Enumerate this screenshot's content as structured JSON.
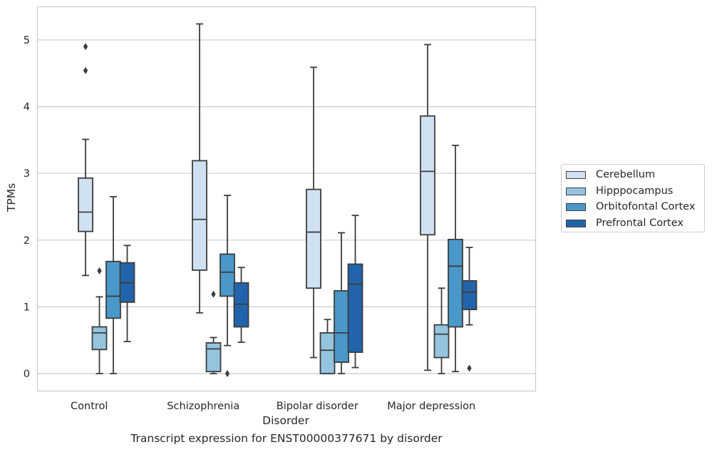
{
  "chart_data": {
    "type": "box",
    "title": "Transcript expression for ENST00000377671 by disorder",
    "xlabel": "Disorder",
    "ylabel": "TPMs",
    "ylim": [
      -0.25,
      5.5
    ],
    "yticks": [
      "0",
      "1",
      "2",
      "3",
      "4",
      "5"
    ],
    "grid": "horizontal",
    "legend_position": "right",
    "categories": [
      "Control",
      "Schizophrenia",
      "Bipolar disorder",
      "Major depression"
    ],
    "series": [
      {
        "name": "Cerebellum",
        "color": "#d0e1f2",
        "boxes": [
          {
            "whislo": 1.47,
            "q1": 2.13,
            "med": 2.42,
            "q3": 2.93,
            "whishi": 3.51,
            "fliers": [
              4.9,
              4.54
            ]
          },
          {
            "whislo": 0.91,
            "q1": 1.55,
            "med": 2.31,
            "q3": 3.19,
            "whishi": 5.24,
            "fliers": []
          },
          {
            "whislo": 0.24,
            "q1": 1.28,
            "med": 2.12,
            "q3": 2.76,
            "whishi": 4.59,
            "fliers": []
          },
          {
            "whislo": 0.05,
            "q1": 2.08,
            "med": 3.03,
            "q3": 3.86,
            "whishi": 4.93,
            "fliers": []
          }
        ]
      },
      {
        "name": "Hipppocampus",
        "color": "#94c4df",
        "boxes": [
          {
            "whislo": 0.0,
            "q1": 0.36,
            "med": 0.61,
            "q3": 0.7,
            "whishi": 1.15,
            "fliers": [
              1.54
            ]
          },
          {
            "whislo": 0.0,
            "q1": 0.03,
            "med": 0.37,
            "q3": 0.46,
            "whishi": 0.54,
            "fliers": [
              1.19
            ]
          },
          {
            "whislo": 0.0,
            "q1": 0.0,
            "med": 0.35,
            "q3": 0.61,
            "whishi": 0.81,
            "fliers": []
          },
          {
            "whislo": 0.0,
            "q1": 0.24,
            "med": 0.59,
            "q3": 0.73,
            "whishi": 1.28,
            "fliers": []
          }
        ]
      },
      {
        "name": "Orbitofontal Cortex",
        "color": "#4a98c9",
        "boxes": [
          {
            "whislo": 0.0,
            "q1": 0.83,
            "med": 1.16,
            "q3": 1.68,
            "whishi": 2.65,
            "fliers": []
          },
          {
            "whislo": 0.42,
            "q1": 1.16,
            "med": 1.52,
            "q3": 1.79,
            "whishi": 2.67,
            "fliers": [
              0.0
            ]
          },
          {
            "whislo": 0.0,
            "q1": 0.17,
            "med": 0.61,
            "q3": 1.24,
            "whishi": 2.11,
            "fliers": []
          },
          {
            "whislo": 0.03,
            "q1": 0.7,
            "med": 1.61,
            "q3": 2.01,
            "whishi": 3.42,
            "fliers": []
          }
        ]
      },
      {
        "name": "Prefrontal Cortex",
        "color": "#2164ab",
        "boxes": [
          {
            "whislo": 0.48,
            "q1": 1.07,
            "med": 1.36,
            "q3": 1.66,
            "whishi": 1.92,
            "fliers": []
          },
          {
            "whislo": 0.47,
            "q1": 0.7,
            "med": 1.04,
            "q3": 1.36,
            "whishi": 1.59,
            "fliers": []
          },
          {
            "whislo": 0.09,
            "q1": 0.32,
            "med": 1.34,
            "q3": 1.64,
            "whishi": 2.37,
            "fliers": []
          },
          {
            "whislo": 0.73,
            "q1": 0.96,
            "med": 1.22,
            "q3": 1.39,
            "whishi": 1.89,
            "fliers": [
              0.08
            ]
          }
        ]
      }
    ]
  }
}
